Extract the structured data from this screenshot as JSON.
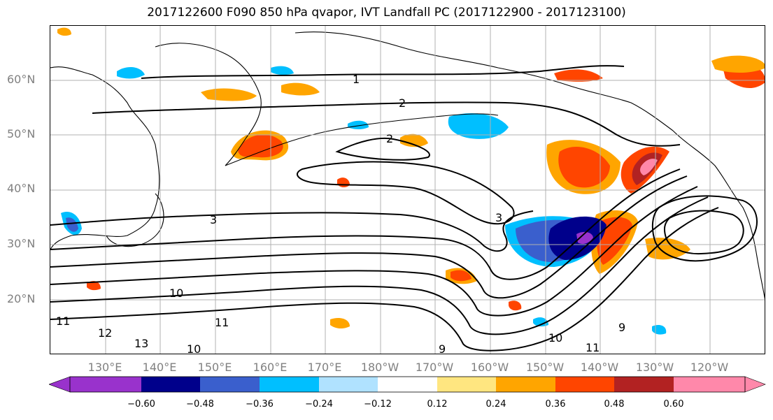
{
  "title": "2017122600 F090 850 hPa qvapor, IVT Landfall PC (2017122900 - 2017123100)",
  "axes": {
    "lat_labels": [
      "60°N",
      "50°N",
      "40°N",
      "30°N",
      "20°N"
    ],
    "lon_labels": [
      "130°E",
      "140°E",
      "150°E",
      "160°E",
      "170°E",
      "180°W",
      "170°W",
      "160°W",
      "150°W",
      "140°W",
      "130°W",
      "120°W"
    ]
  },
  "contour_labels": [
    "1",
    "2",
    "2",
    "3",
    "3",
    "10",
    "11",
    "12",
    "13",
    "10",
    "11",
    "9",
    "10",
    "11",
    "9"
  ],
  "colorbar": {
    "ticks": [
      "−0.60",
      "−0.48",
      "−0.36",
      "−0.24",
      "−0.12",
      "0.12",
      "0.24",
      "0.36",
      "0.48",
      "0.60"
    ],
    "colors": [
      "#9932cc",
      "#00008b",
      "#3a5fcd",
      "#00bfff",
      "#b0e2ff",
      "#ffffff",
      "#ffe680",
      "#ffa500",
      "#ff4500",
      "#b22222",
      "#ff88aa"
    ]
  },
  "colors": {
    "land": "#000000",
    "grid": "#b0b0b0",
    "labels": "#808080"
  }
}
